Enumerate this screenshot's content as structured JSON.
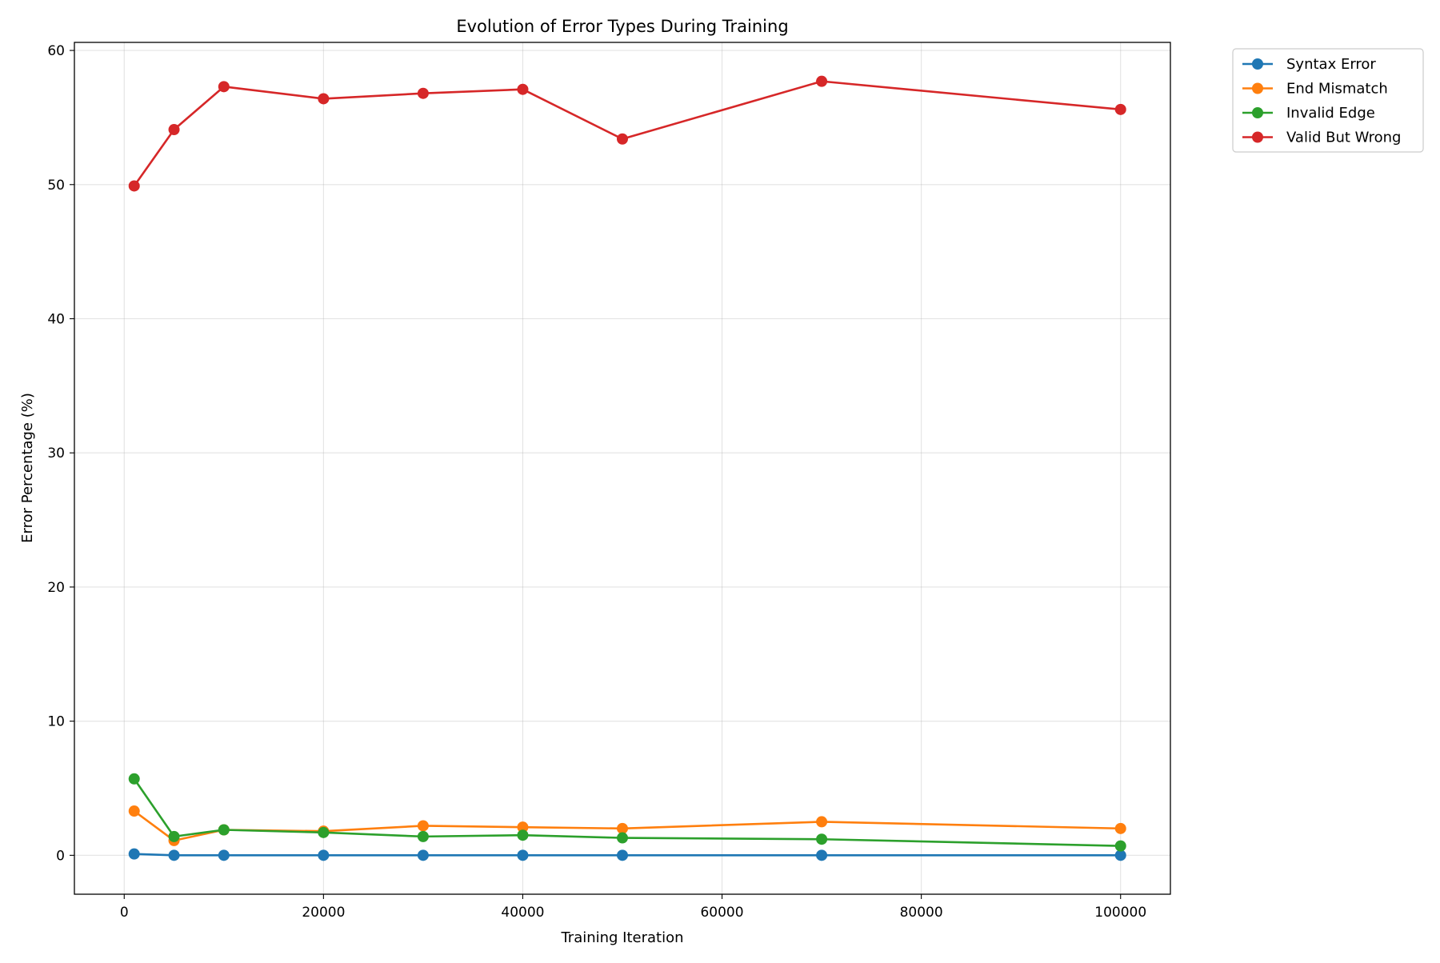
{
  "chart_data": {
    "type": "line",
    "title": "Evolution of Error Types During Training",
    "xlabel": "Training Iteration",
    "ylabel": "Error Percentage (%)",
    "xlim": [
      -5000,
      105000
    ],
    "ylim": [
      -2.9,
      60.6
    ],
    "xticks": [
      0,
      20000,
      40000,
      60000,
      80000,
      100000
    ],
    "yticks": [
      0,
      10,
      20,
      30,
      40,
      50,
      60
    ],
    "grid": true,
    "legend_position": "outside upper right",
    "x": [
      1000,
      5000,
      10000,
      20000,
      30000,
      40000,
      50000,
      70000,
      100000
    ],
    "series": [
      {
        "name": "Syntax Error",
        "color": "#1f77b4",
        "values": [
          0.1,
          0.0,
          0.0,
          0.0,
          0.0,
          0.0,
          0.0,
          0.0,
          0.0
        ]
      },
      {
        "name": "End Mismatch",
        "color": "#ff7f0e",
        "values": [
          3.3,
          1.1,
          1.9,
          1.8,
          2.2,
          2.1,
          2.0,
          2.5,
          2.0
        ]
      },
      {
        "name": "Invalid Edge",
        "color": "#2ca02c",
        "values": [
          5.7,
          1.4,
          1.9,
          1.7,
          1.4,
          1.5,
          1.3,
          1.2,
          0.7
        ]
      },
      {
        "name": "Valid But Wrong",
        "color": "#d62728",
        "values": [
          49.9,
          54.1,
          57.3,
          56.4,
          56.8,
          57.1,
          53.4,
          57.7,
          55.6
        ]
      }
    ]
  }
}
